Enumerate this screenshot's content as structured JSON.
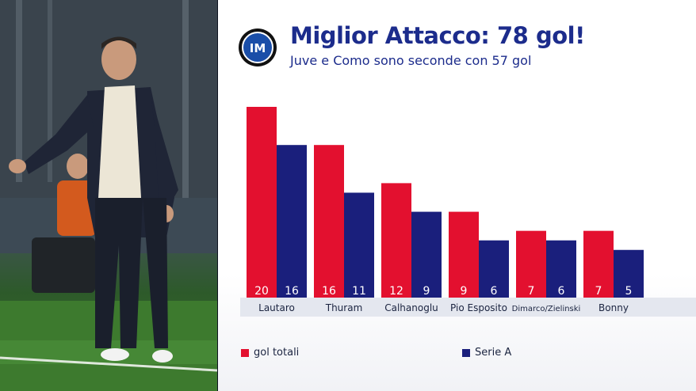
{
  "header": {
    "title": "Miglior Attacco: 78 gol!",
    "subtitle": "Juve e Como sono seconde con 57 gol",
    "logo_icon": "inter-logo-icon"
  },
  "colors": {
    "gol_totali": "#e3102f",
    "serie_a": "#1a1f7c",
    "title": "#1c2c8c"
  },
  "chart_data": {
    "type": "bar",
    "title": "Miglior Attacco: 78 gol!",
    "subtitle": "Juve e Como sono seconde con 57 gol",
    "categories": [
      "Lautaro",
      "Thuram",
      "Calhanoglu",
      "Pio Esposito",
      "Dimarco/Zielinski",
      "Bonny"
    ],
    "series": [
      {
        "name": "gol totali",
        "values": [
          20,
          16,
          12,
          9,
          7,
          7
        ]
      },
      {
        "name": "Serie A",
        "values": [
          16,
          11,
          9,
          6,
          6,
          5
        ]
      }
    ],
    "ylim": [
      0,
      20
    ],
    "grid": false,
    "legend": "bottom"
  },
  "legend": {
    "gol_totali": "gol totali",
    "serie_a": "Serie A"
  }
}
